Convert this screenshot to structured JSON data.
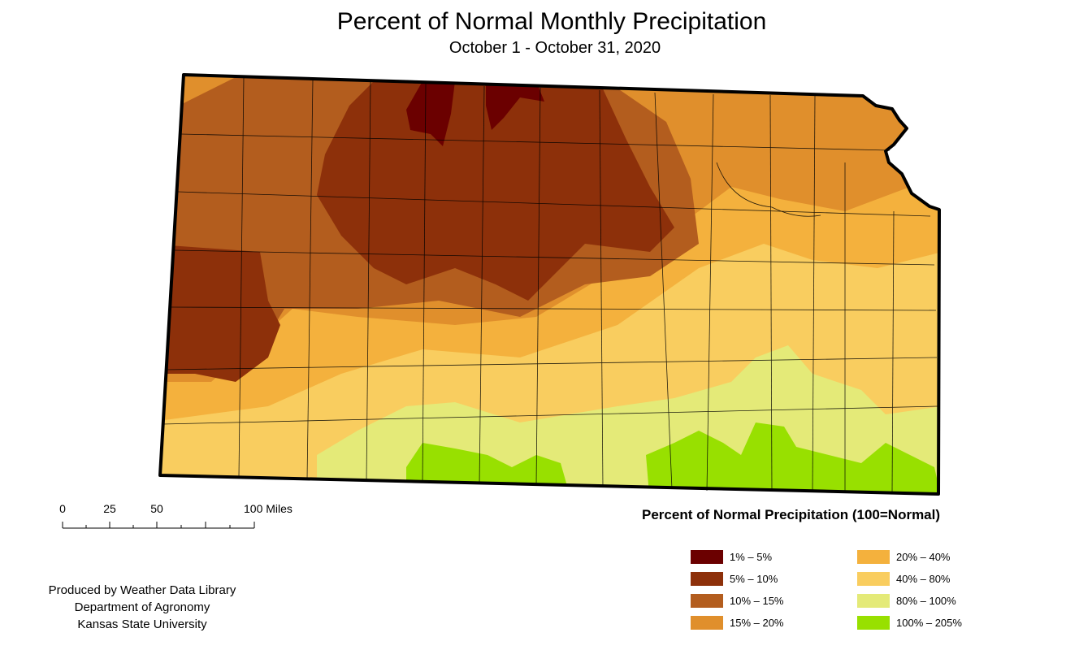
{
  "header": {
    "title": "Percent of Normal Monthly Precipitation",
    "subtitle": "October 1 - October 31, 2020"
  },
  "scale_bar": {
    "labels": [
      "0",
      "25",
      "50",
      "100 Miles"
    ]
  },
  "legend": {
    "title": "Percent of Normal Precipitation (100=Normal)",
    "items": [
      {
        "label": "1% – 5%",
        "color": "#6b0000"
      },
      {
        "label": "5% – 10%",
        "color": "#8d300a"
      },
      {
        "label": "10% – 15%",
        "color": "#b35d1e"
      },
      {
        "label": "15% – 20%",
        "color": "#e08f2c"
      },
      {
        "label": "20% – 40%",
        "color": "#f4b13d"
      },
      {
        "label": "40% – 80%",
        "color": "#f9cd5f"
      },
      {
        "label": "80% – 100%",
        "color": "#e4ea78"
      },
      {
        "label": "100% – 205%",
        "color": "#98e000"
      }
    ]
  },
  "credits": {
    "line1": "Produced by Weather Data Library",
    "line2": "Department of Agronomy",
    "line3": "Kansas State University"
  }
}
